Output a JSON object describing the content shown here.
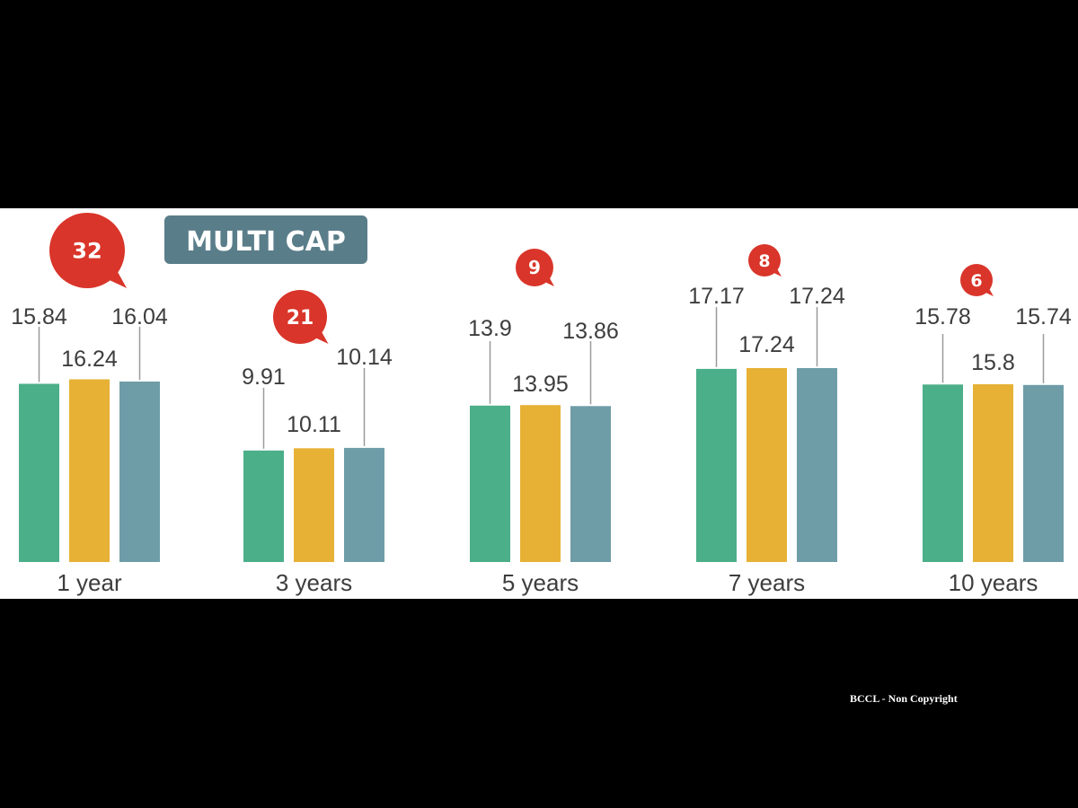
{
  "credit": "BCCL - Non Copyright",
  "colors": {
    "series": [
      "#4baf89",
      "#e6b135",
      "#6f9da7"
    ],
    "badge": "#d9352a",
    "title_bg": "#5a7d8a",
    "panel_bg": "#ffffff"
  },
  "chart_data": {
    "type": "bar",
    "title": "MULTI CAP",
    "categories": [
      "1 year",
      "3 years",
      "5 years",
      "7 years",
      "10 years"
    ],
    "series": [
      {
        "values": [
          15.84,
          9.91,
          13.9,
          17.17,
          15.78
        ]
      },
      {
        "values": [
          16.24,
          10.11,
          13.95,
          17.24,
          15.8
        ]
      },
      {
        "values": [
          16.04,
          10.14,
          13.86,
          17.24,
          15.74
        ]
      }
    ],
    "value_labels": [
      [
        "15.84",
        "16.24",
        "16.04"
      ],
      [
        "9.91",
        "10.11",
        "10.14"
      ],
      [
        "13.9",
        "13.95",
        "13.86"
      ],
      [
        "17.17",
        "17.24",
        "17.24"
      ],
      [
        "15.78",
        "15.8",
        "15.74"
      ]
    ],
    "badges": [
      "32",
      "21",
      "9",
      "8",
      "6"
    ],
    "grid": false,
    "legend": "none"
  }
}
